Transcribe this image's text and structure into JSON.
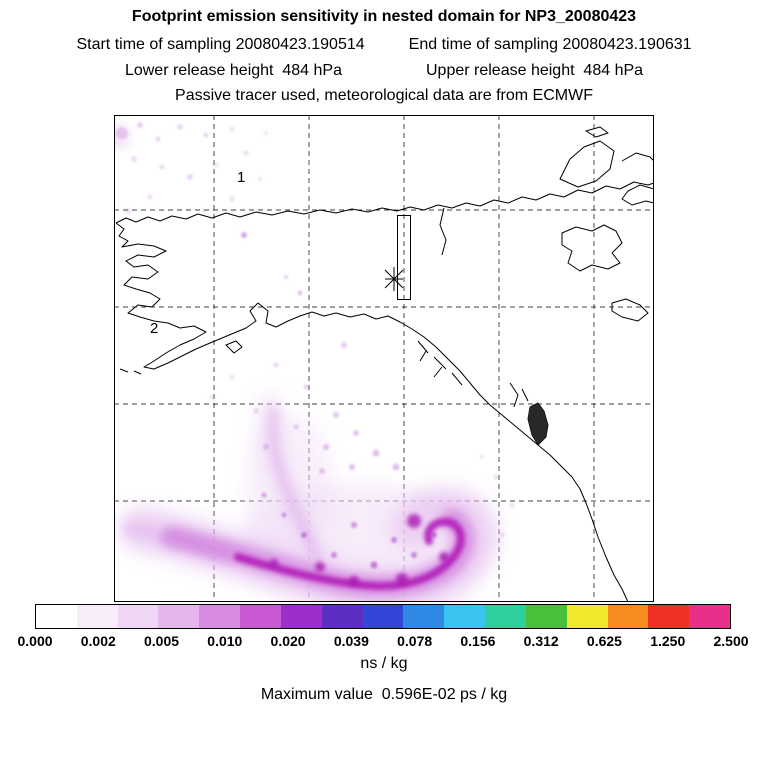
{
  "header": {
    "title": "Footprint emission sensitivity in nested domain for NP3_20080423",
    "start_time": "Start time of sampling 20080423.190514",
    "end_time": "End time of sampling 20080423.190631",
    "lower_release": "Lower release height  484 hPa",
    "upper_release": "Upper release height  484 hPa",
    "tracer_line": "Passive tracer used, meteorological data are from ECMWF"
  },
  "map": {
    "region_labels": [
      {
        "text": "1"
      },
      {
        "text": "2"
      }
    ],
    "release_marker": "asterisk",
    "overlays": [
      "dashed lat/lon grid",
      "coastlines",
      "nested domain box",
      "release point marker"
    ]
  },
  "colorbar": {
    "tick_labels": [
      "0.000",
      "0.002",
      "0.005",
      "0.010",
      "0.020",
      "0.039",
      "0.078",
      "0.156",
      "0.312",
      "0.625",
      "1.250",
      "2.500"
    ],
    "units": "ns / kg",
    "colors": [
      "#ffffff",
      "#f8ecfa",
      "#efd6f4",
      "#e4b6ec",
      "#d88ce1",
      "#c758d2",
      "#9c2fc9",
      "#5c2ec1",
      "#3247d7",
      "#2f8ae5",
      "#38c4ef",
      "#2fcf9e",
      "#49bf3c",
      "#f2e92c",
      "#f68c1f",
      "#ee3123",
      "#e8308a"
    ]
  },
  "footer": {
    "max_value_label": "Maximum value  0.596E-02 ps / kg"
  },
  "chart_data": {
    "type": "heatmap",
    "title": "Footprint emission sensitivity in nested domain for NP3_20080423",
    "field": "footprint emission sensitivity",
    "units": "ns / kg",
    "colorscale_levels": [
      0.0,
      0.002,
      0.005,
      0.01,
      0.02,
      0.039,
      0.078,
      0.156,
      0.312,
      0.625,
      1.25,
      2.5
    ],
    "colorscale_colors": [
      "#ffffff",
      "#f8ecfa",
      "#efd6f4",
      "#e4b6ec",
      "#d88ce1",
      "#c758d2",
      "#9c2fc9",
      "#5c2ec1",
      "#3247d7",
      "#2f8ae5",
      "#38c4ef",
      "#2fcf9e",
      "#49bf3c",
      "#f2e92c",
      "#f68c1f",
      "#ee3123",
      "#e8308a"
    ],
    "legend_position": "bottom horizontal colorbar",
    "maximum_value": "0.596E-02 ps / kg",
    "sampling_start": "20080423.190514",
    "sampling_end": "20080423.190631",
    "release_height_lower": "484 hPa",
    "release_height_upper": "484 hPa",
    "meteorology": "ECMWF",
    "map_region": "Alaska, northwestern Canada and northeast Pacific",
    "plume_description": "Diffuse purple sensitivity plume curving over the Gulf of Alaska with a dense magenta hook in the lower-central map and faint speckles over western Alaska; release point marked by an asterisk inside a narrow nested-domain rectangle; region labels 1 and 2 on the map"
  }
}
